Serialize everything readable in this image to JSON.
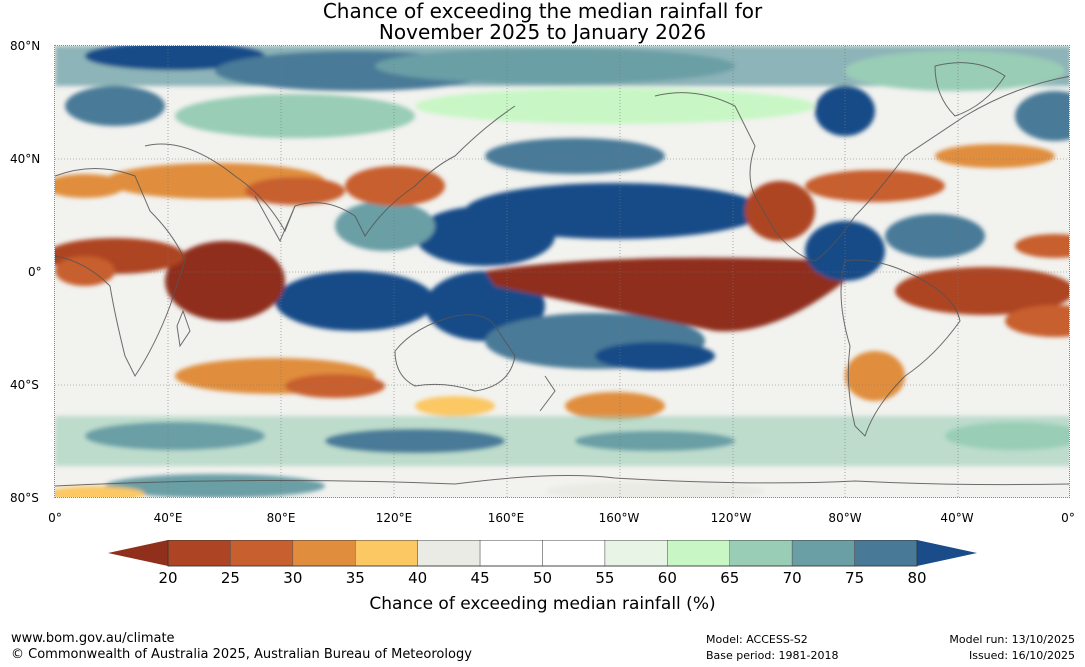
{
  "title": {
    "line1": "Chance of exceeding the median rainfall for",
    "line2": "November 2025 to January 2026"
  },
  "map": {
    "lat_labels": [
      "80°N",
      "40°N",
      "0°",
      "40°S",
      "80°S"
    ],
    "lon_labels": [
      "0°",
      "40°E",
      "80°E",
      "120°E",
      "160°E",
      "160°W",
      "120°W",
      "80°W",
      "40°W",
      "0°"
    ]
  },
  "colorbar": {
    "ticks": [
      "20",
      "25",
      "30",
      "35",
      "40",
      "45",
      "50",
      "55",
      "60",
      "65",
      "70",
      "75",
      "80"
    ],
    "colors": [
      "#8f2f1c",
      "#ad4423",
      "#c85f2e",
      "#e08e3e",
      "#fbc863",
      "#ebebe6",
      "#ffffff",
      "#ffffff",
      "#e8f5e6",
      "#c8f7c5",
      "#99cdb6",
      "#6b9fa6",
      "#487a98",
      "#194c88"
    ],
    "label": "Chance of exceeding median rainfall (%)"
  },
  "footer": {
    "website": "www.bom.gov.au/climate",
    "copyright": "© Commonwealth of Australia 2025, Australian Bureau of Meteorology",
    "model": "Model: ACCESS-S2",
    "base_period": "Base period: 1981-2018",
    "model_run": "Model run: 13/10/2025",
    "issued": "Issued: 16/10/2025"
  }
}
